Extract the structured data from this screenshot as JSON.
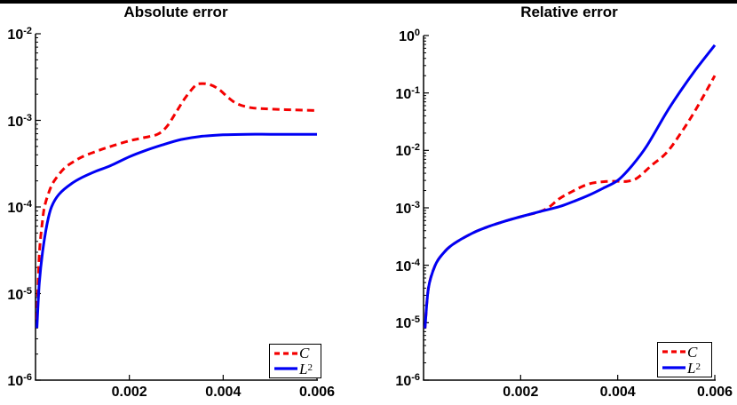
{
  "page": {
    "top_bar_color": "#000000",
    "background": "#ffffff"
  },
  "colors": {
    "c_line": "#f40000",
    "l2_line": "#0000f4",
    "axis": "#000000"
  },
  "chart_data": [
    {
      "type": "line",
      "title": "Absolute error",
      "xlabel": "",
      "ylabel": "",
      "x_scale": "linear",
      "y_scale": "log",
      "xlim": [
        0,
        0.006
      ],
      "ylim": [
        1e-06,
        0.01
      ],
      "x_ticks": [
        0.002,
        0.004,
        0.006
      ],
      "x_tick_labels": [
        "0.002",
        "0.004",
        "0.006"
      ],
      "y_tick_labels": [
        "10^-2",
        "10^-3",
        "10^-4",
        "10^-5",
        "10^-6"
      ],
      "y_tick_exponents": [
        -2,
        -3,
        -4,
        -5,
        -6
      ],
      "grid": false,
      "legend": {
        "position": "south-east",
        "entries": [
          {
            "label": "C",
            "sup": "",
            "style": "dashed",
            "color": "#f40000"
          },
          {
            "label": "L",
            "sup": "2",
            "style": "solid",
            "color": "#0000f4"
          }
        ]
      },
      "series": [
        {
          "name": "C",
          "style": "dashed",
          "color_key": "c_line",
          "points": [
            [
              3e-05,
              5e-06
            ],
            [
              8e-05,
              2.8e-05
            ],
            [
              0.00015,
              7e-05
            ],
            [
              0.0002,
              0.000105
            ],
            [
              0.0003,
              0.000155
            ],
            [
              0.0004,
              0.0002
            ],
            [
              0.0006,
              0.000275
            ],
            [
              0.0008,
              0.00033
            ],
            [
              0.001,
              0.00038
            ],
            [
              0.0013,
              0.00044
            ],
            [
              0.0016,
              0.0005
            ],
            [
              0.002,
              0.00058
            ],
            [
              0.0023,
              0.00063
            ],
            [
              0.0026,
              0.00069
            ],
            [
              0.0028,
              0.00085
            ],
            [
              0.003,
              0.00125
            ],
            [
              0.0032,
              0.00185
            ],
            [
              0.0034,
              0.0025
            ],
            [
              0.0035,
              0.00265
            ],
            [
              0.0037,
              0.0026
            ],
            [
              0.0039,
              0.0023
            ],
            [
              0.0041,
              0.00185
            ],
            [
              0.0043,
              0.00155
            ],
            [
              0.0046,
              0.0014
            ],
            [
              0.005,
              0.00135
            ],
            [
              0.0055,
              0.00132
            ],
            [
              0.006,
              0.0013
            ]
          ]
        },
        {
          "name": "L2",
          "style": "solid",
          "color_key": "l2_line",
          "points": [
            [
              3e-05,
              4e-06
            ],
            [
              8e-05,
              1.3e-05
            ],
            [
              0.00015,
              3e-05
            ],
            [
              0.00025,
              6.5e-05
            ],
            [
              0.00034,
              0.0001
            ],
            [
              0.0005,
              0.00014
            ],
            [
              0.00076,
              0.000185
            ],
            [
              0.001,
              0.00022
            ],
            [
              0.0013,
              0.00026
            ],
            [
              0.0016,
              0.0003
            ],
            [
              0.002,
              0.00038
            ],
            [
              0.0023,
              0.00044
            ],
            [
              0.0027,
              0.00052
            ],
            [
              0.0031,
              0.0006
            ],
            [
              0.0035,
              0.00065
            ],
            [
              0.004,
              0.00068
            ],
            [
              0.0045,
              0.00069
            ],
            [
              0.005,
              0.00069
            ],
            [
              0.0055,
              0.00069
            ],
            [
              0.006,
              0.00069
            ]
          ]
        }
      ]
    },
    {
      "type": "line",
      "title": "Relative error",
      "xlabel": "",
      "ylabel": "",
      "x_scale": "linear",
      "y_scale": "log",
      "xlim": [
        0,
        0.006
      ],
      "ylim": [
        1e-06,
        1
      ],
      "x_ticks": [
        0.002,
        0.004,
        0.006
      ],
      "x_tick_labels": [
        "0.002",
        "0.004",
        "0.006"
      ],
      "y_tick_labels": [
        "10^0",
        "10^-1",
        "10^-2",
        "10^-3",
        "10^-4",
        "10^-5",
        "10^-6"
      ],
      "y_tick_exponents": [
        0,
        -1,
        -2,
        -3,
        -4,
        -5,
        -6
      ],
      "grid": false,
      "legend": {
        "position": "south-east",
        "entries": [
          {
            "label": "C",
            "sup": "",
            "style": "dashed",
            "color": "#f40000"
          },
          {
            "label": "L",
            "sup": "2",
            "style": "solid",
            "color": "#0000f4"
          }
        ]
      },
      "series": [
        {
          "name": "C",
          "style": "dashed",
          "color_key": "c_line",
          "points": [
            [
              3e-05,
              8e-06
            ],
            [
              0.0001,
              4e-05
            ],
            [
              0.00024,
              0.0001
            ],
            [
              0.0004,
              0.00016
            ],
            [
              0.0006,
              0.00023
            ],
            [
              0.001,
              0.00036
            ],
            [
              0.0013,
              0.00046
            ],
            [
              0.0016,
              0.00056
            ],
            [
              0.002,
              0.0007
            ],
            [
              0.0024,
              0.00086
            ],
            [
              0.0026,
              0.00105
            ],
            [
              0.0028,
              0.00145
            ],
            [
              0.0031,
              0.002
            ],
            [
              0.0034,
              0.0026
            ],
            [
              0.0037,
              0.00285
            ],
            [
              0.004,
              0.0029
            ],
            [
              0.0042,
              0.0029
            ],
            [
              0.0044,
              0.0033
            ],
            [
              0.0047,
              0.0055
            ],
            [
              0.005,
              0.009
            ],
            [
              0.0053,
              0.02
            ],
            [
              0.0056,
              0.05
            ],
            [
              0.006,
              0.2
            ]
          ]
        },
        {
          "name": "L2",
          "style": "solid",
          "color_key": "l2_line",
          "points": [
            [
              3e-05,
              8e-06
            ],
            [
              0.0001,
              4e-05
            ],
            [
              0.00024,
              0.0001
            ],
            [
              0.0004,
              0.00016
            ],
            [
              0.0006,
              0.00023
            ],
            [
              0.001,
              0.00036
            ],
            [
              0.0013,
              0.00046
            ],
            [
              0.0016,
              0.00056
            ],
            [
              0.002,
              0.0007
            ],
            [
              0.0024,
              0.00086
            ],
            [
              0.0028,
              0.00105
            ],
            [
              0.0031,
              0.0013
            ],
            [
              0.0034,
              0.00165
            ],
            [
              0.0037,
              0.0022
            ],
            [
              0.004,
              0.003
            ],
            [
              0.0043,
              0.0055
            ],
            [
              0.0046,
              0.012
            ],
            [
              0.005,
              0.045
            ],
            [
              0.0053,
              0.11
            ],
            [
              0.0056,
              0.25
            ],
            [
              0.006,
              0.68
            ]
          ]
        }
      ]
    }
  ]
}
